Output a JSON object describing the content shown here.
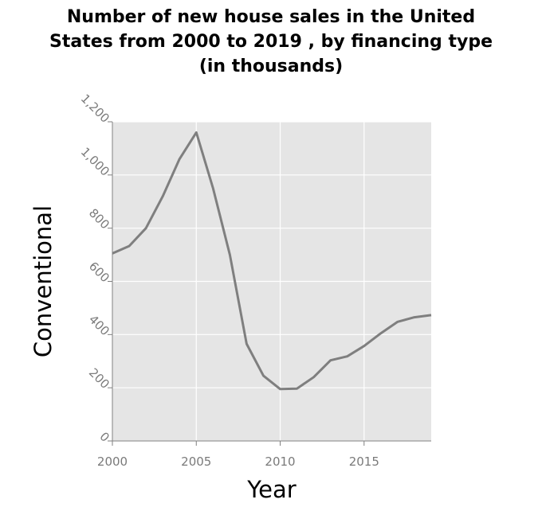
{
  "chart_data": {
    "type": "line",
    "title_lines": [
      "Number of new house sales in the United",
      "States from 2000 to 2019 , by financing type",
      "(in thousands)"
    ],
    "xlabel": "Year",
    "ylabel": "Conventional",
    "xlim": [
      2000,
      2019
    ],
    "ylim": [
      0,
      1200
    ],
    "x_ticks": [
      {
        "value": 2000,
        "label": "2000"
      },
      {
        "value": 2005,
        "label": "2005"
      },
      {
        "value": 2010,
        "label": "2010"
      },
      {
        "value": 2015,
        "label": "2015"
      }
    ],
    "y_ticks": [
      {
        "value": 0,
        "label": "0"
      },
      {
        "value": 200,
        "label": "200"
      },
      {
        "value": 400,
        "label": "400"
      },
      {
        "value": 600,
        "label": "600"
      },
      {
        "value": 800,
        "label": "800"
      },
      {
        "value": 1000,
        "label": "1,000"
      },
      {
        "value": 1200,
        "label": "1,200"
      }
    ],
    "grid": true,
    "x": [
      2000,
      2001,
      2002,
      2003,
      2004,
      2005,
      2006,
      2007,
      2008,
      2009,
      2010,
      2011,
      2012,
      2013,
      2014,
      2015,
      2016,
      2017,
      2018,
      2019
    ],
    "values": [
      705,
      733,
      800,
      920,
      1060,
      1160,
      950,
      700,
      365,
      245,
      195,
      197,
      240,
      303,
      318,
      357,
      405,
      448,
      465,
      473
    ],
    "colors": {
      "line": "#7f7f7f",
      "plot_background": "#e5e5e5",
      "grid": "#ffffff",
      "axis": "#7f7f7f"
    }
  }
}
